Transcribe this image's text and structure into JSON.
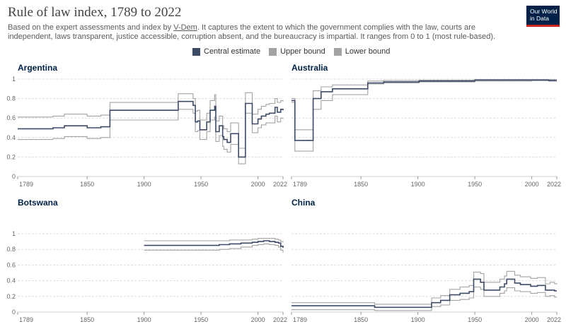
{
  "header": {
    "title": "Rule of law index, 1789 to 2022",
    "subtitle_pre": "Based on the expert assessments and index by ",
    "subtitle_link": "V-Dem",
    "subtitle_post": ". It captures the extent to which the government complies with the law, courts are independent, laws transparent, justice accessible, corruption absent, and the bureaucracy is impartial. It ranges from 0 to 1 (most rule-based).",
    "logo_line1": "Our World",
    "logo_line2": "in Data"
  },
  "colors": {
    "central": "#3d4b67",
    "bounds": "#a3a3a3",
    "title": "#002147"
  },
  "legend": [
    {
      "label": "Central estimate",
      "color": "#3d4b67"
    },
    {
      "label": "Upper bound",
      "color": "#a3a3a3"
    },
    {
      "label": "Lower bound",
      "color": "#a3a3a3"
    }
  ],
  "chart_data": [
    {
      "type": "line",
      "title": "Argentina",
      "xlim": [
        1789,
        2022
      ],
      "ylim": [
        0,
        1
      ],
      "xticks": [
        "1789",
        "1850",
        "1900",
        "1950",
        "2000",
        "2022"
      ],
      "yticks": [
        "0",
        "0.2",
        "0.4",
        "0.6",
        "0.8",
        "1"
      ],
      "grid": true,
      "series": [
        {
          "name": "Central estimate",
          "x": [
            1789,
            1810,
            1820,
            1830,
            1840,
            1850,
            1862,
            1870,
            1900,
            1917,
            1930,
            1932,
            1943,
            1945,
            1947,
            1949,
            1953,
            1955,
            1958,
            1962,
            1963,
            1966,
            1969,
            1970,
            1973,
            1976,
            1983,
            1989,
            1995,
            2000,
            2003,
            2007,
            2010,
            2015,
            2017,
            2020,
            2022
          ],
          "y": [
            0.49,
            0.49,
            0.5,
            0.52,
            0.52,
            0.5,
            0.51,
            0.68,
            0.68,
            0.68,
            0.77,
            0.77,
            0.73,
            0.56,
            0.57,
            0.48,
            0.48,
            0.56,
            0.68,
            0.72,
            0.46,
            0.52,
            0.41,
            0.38,
            0.35,
            0.44,
            0.2,
            0.75,
            0.54,
            0.59,
            0.62,
            0.64,
            0.65,
            0.71,
            0.66,
            0.69,
            0.68
          ]
        },
        {
          "name": "Upper bound",
          "x": [
            1789,
            1810,
            1820,
            1830,
            1840,
            1850,
            1862,
            1870,
            1900,
            1917,
            1930,
            1932,
            1943,
            1945,
            1947,
            1949,
            1953,
            1955,
            1958,
            1962,
            1963,
            1966,
            1969,
            1970,
            1973,
            1976,
            1983,
            1989,
            1995,
            2000,
            2003,
            2007,
            2010,
            2015,
            2017,
            2020,
            2022
          ],
          "y": [
            0.61,
            0.61,
            0.62,
            0.64,
            0.64,
            0.62,
            0.63,
            0.76,
            0.76,
            0.76,
            0.85,
            0.85,
            0.8,
            0.67,
            0.68,
            0.58,
            0.58,
            0.65,
            0.78,
            0.84,
            0.57,
            0.62,
            0.52,
            0.49,
            0.46,
            0.55,
            0.29,
            0.86,
            0.64,
            0.69,
            0.72,
            0.74,
            0.75,
            0.8,
            0.76,
            0.78,
            0.77
          ]
        },
        {
          "name": "Lower bound",
          "x": [
            1789,
            1810,
            1820,
            1830,
            1840,
            1850,
            1862,
            1870,
            1900,
            1917,
            1930,
            1932,
            1943,
            1945,
            1947,
            1949,
            1953,
            1955,
            1958,
            1962,
            1963,
            1966,
            1969,
            1970,
            1973,
            1976,
            1983,
            1989,
            1995,
            2000,
            2003,
            2007,
            2010,
            2015,
            2017,
            2020,
            2022
          ],
          "y": [
            0.38,
            0.38,
            0.39,
            0.41,
            0.41,
            0.39,
            0.4,
            0.58,
            0.58,
            0.58,
            0.69,
            0.69,
            0.65,
            0.46,
            0.47,
            0.38,
            0.38,
            0.46,
            0.58,
            0.61,
            0.36,
            0.42,
            0.31,
            0.28,
            0.25,
            0.33,
            0.13,
            0.65,
            0.45,
            0.5,
            0.53,
            0.55,
            0.55,
            0.62,
            0.56,
            0.6,
            0.59
          ]
        }
      ]
    },
    {
      "type": "line",
      "title": "Australia",
      "xlim": [
        1789,
        2022
      ],
      "ylim": [
        0,
        1
      ],
      "xticks": [
        "1789",
        "1850",
        "1900",
        "1950",
        "2000",
        "2022"
      ],
      "yticks": [
        "0",
        "0.2",
        "0.4",
        "0.6",
        "0.8",
        "1"
      ],
      "grid": true,
      "series": [
        {
          "name": "Central estimate",
          "x": [
            1789,
            1792,
            1808,
            1815,
            1825,
            1856,
            1870,
            1901,
            1950,
            1980,
            2000,
            2015,
            2022
          ],
          "y": [
            0.78,
            0.37,
            0.8,
            0.87,
            0.9,
            0.96,
            0.97,
            0.98,
            0.99,
            0.99,
            0.99,
            0.985,
            0.985
          ]
        },
        {
          "name": "Upper bound",
          "x": [
            1789,
            1792,
            1808,
            1815,
            1825,
            1856,
            1870,
            1901,
            1950,
            1980,
            2000,
            2015,
            2022
          ],
          "y": [
            0.8,
            0.48,
            0.88,
            0.92,
            0.94,
            0.98,
            0.985,
            0.99,
            0.995,
            0.995,
            0.995,
            0.995,
            0.995
          ]
        },
        {
          "name": "Lower bound",
          "x": [
            1789,
            1792,
            1808,
            1815,
            1825,
            1856,
            1870,
            1901,
            1950,
            1980,
            2000,
            2015,
            2022
          ],
          "y": [
            0.76,
            0.26,
            0.69,
            0.78,
            0.84,
            0.95,
            0.96,
            0.97,
            0.98,
            0.98,
            0.985,
            0.98,
            0.98
          ]
        }
      ]
    },
    {
      "type": "line",
      "title": "Botswana",
      "xlim": [
        1789,
        2022
      ],
      "ylim": [
        0,
        1
      ],
      "xticks": [
        "1789",
        "1850",
        "1900",
        "1950",
        "2000",
        "2022"
      ],
      "yticks": [
        "0",
        "0.2",
        "0.4",
        "0.6",
        "0.8",
        "1"
      ],
      "grid": true,
      "series": [
        {
          "name": "Central estimate",
          "x": [
            1900,
            1920,
            1935,
            1966,
            1975,
            1985,
            1995,
            2000,
            2005,
            2010,
            2015,
            2018,
            2020,
            2022
          ],
          "y": [
            0.85,
            0.85,
            0.85,
            0.86,
            0.87,
            0.88,
            0.89,
            0.9,
            0.91,
            0.9,
            0.89,
            0.88,
            0.84,
            0.82
          ]
        },
        {
          "name": "Upper bound",
          "x": [
            1900,
            1920,
            1935,
            1966,
            1975,
            1985,
            1995,
            2000,
            2005,
            2010,
            2015,
            2018,
            2020,
            2022
          ],
          "y": [
            0.91,
            0.91,
            0.91,
            0.91,
            0.92,
            0.92,
            0.93,
            0.94,
            0.94,
            0.94,
            0.93,
            0.92,
            0.9,
            0.89
          ]
        },
        {
          "name": "Lower bound",
          "x": [
            1900,
            1920,
            1935,
            1966,
            1975,
            1985,
            1995,
            2000,
            2005,
            2010,
            2015,
            2018,
            2020,
            2022
          ],
          "y": [
            0.79,
            0.79,
            0.79,
            0.8,
            0.81,
            0.83,
            0.85,
            0.86,
            0.87,
            0.86,
            0.85,
            0.83,
            0.79,
            0.76
          ]
        }
      ]
    },
    {
      "type": "line",
      "title": "China",
      "xlim": [
        1789,
        2022
      ],
      "ylim": [
        0,
        1
      ],
      "xticks": [
        "1789",
        "1850",
        "1900",
        "1950",
        "2000",
        "2022"
      ],
      "yticks": [
        "0",
        "0.2",
        "0.4",
        "0.6",
        "0.8",
        "1"
      ],
      "grid": true,
      "series": [
        {
          "name": "Central estimate",
          "x": [
            1789,
            1850,
            1862,
            1900,
            1912,
            1920,
            1928,
            1937,
            1945,
            1949,
            1955,
            1958,
            1966,
            1972,
            1976,
            1978,
            1985,
            1990,
            1999,
            2005,
            2012,
            2016,
            2020,
            2022
          ],
          "y": [
            0.08,
            0.08,
            0.06,
            0.06,
            0.12,
            0.15,
            0.22,
            0.24,
            0.26,
            0.42,
            0.38,
            0.28,
            0.28,
            0.32,
            0.36,
            0.42,
            0.37,
            0.35,
            0.33,
            0.34,
            0.28,
            0.28,
            0.27,
            0.27
          ]
        },
        {
          "name": "Upper bound",
          "x": [
            1789,
            1850,
            1862,
            1900,
            1912,
            1920,
            1928,
            1937,
            1945,
            1949,
            1955,
            1958,
            1966,
            1972,
            1976,
            1978,
            1985,
            1990,
            1999,
            2005,
            2012,
            2016,
            2020,
            2022
          ],
          "y": [
            0.12,
            0.12,
            0.1,
            0.1,
            0.18,
            0.21,
            0.29,
            0.32,
            0.34,
            0.51,
            0.49,
            0.38,
            0.38,
            0.42,
            0.46,
            0.52,
            0.47,
            0.45,
            0.43,
            0.44,
            0.36,
            0.38,
            0.36,
            0.37
          ]
        },
        {
          "name": "Lower bound",
          "x": [
            1789,
            1850,
            1862,
            1900,
            1912,
            1920,
            1928,
            1937,
            1945,
            1949,
            1955,
            1958,
            1966,
            1972,
            1976,
            1978,
            1985,
            1990,
            1999,
            2005,
            2012,
            2016,
            2020,
            2022
          ],
          "y": [
            0.03,
            0.03,
            0.02,
            0.02,
            0.07,
            0.09,
            0.15,
            0.16,
            0.18,
            0.32,
            0.29,
            0.2,
            0.2,
            0.24,
            0.27,
            0.31,
            0.27,
            0.26,
            0.24,
            0.25,
            0.2,
            0.21,
            0.19,
            0.19
          ]
        }
      ]
    }
  ]
}
